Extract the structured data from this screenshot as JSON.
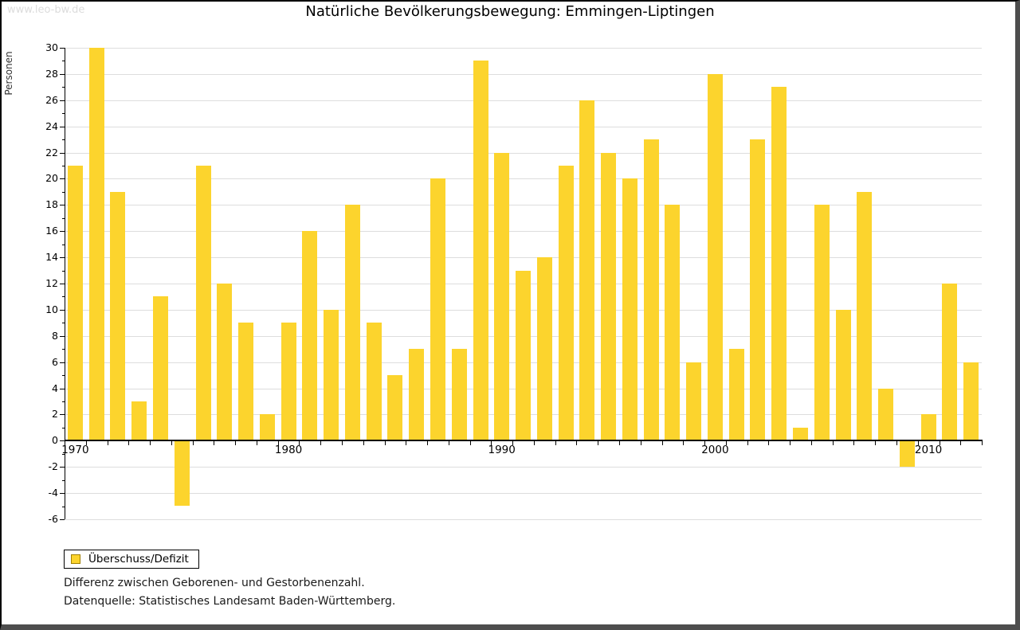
{
  "watermark": "www.leo-bw.de",
  "title": "Natürliche Bevölkerungsbewegung: Emmingen-Liptingen",
  "legend": {
    "label": "Überschuss/Defizit",
    "swatch_color": "#FCD42D",
    "swatch_border": "#A18000"
  },
  "notes": [
    "Differenz zwischen Geborenen- und Gestorbenenzahl.",
    "Datenquelle: Statistisches Landesamt Baden-Württemberg."
  ],
  "chart_data": {
    "type": "bar",
    "title": "Natürliche Bevölkerungsbewegung: Emmingen-Liptingen",
    "xlabel": "",
    "ylabel": "Personen",
    "ylim": [
      -6,
      30
    ],
    "y_tick_step": 2,
    "grid": true,
    "legend_position": "bottom-left",
    "series_name": "Überschuss/Defizit",
    "bar_color": "#FCD42D",
    "gridline_color": "#dddddd",
    "x": [
      1970,
      1971,
      1972,
      1973,
      1974,
      1975,
      1976,
      1977,
      1978,
      1979,
      1980,
      1981,
      1982,
      1983,
      1984,
      1985,
      1986,
      1987,
      1988,
      1989,
      1990,
      1991,
      1992,
      1993,
      1994,
      1995,
      1996,
      1997,
      1998,
      1999,
      2000,
      2001,
      2002,
      2003,
      2004,
      2005,
      2006,
      2007,
      2008,
      2009,
      2010,
      2011,
      2012
    ],
    "values": [
      21,
      30,
      19,
      3,
      11,
      -5,
      21,
      12,
      9,
      2,
      9,
      16,
      10,
      18,
      9,
      5,
      7,
      20,
      7,
      29,
      22,
      13,
      14,
      21,
      26,
      22,
      20,
      23,
      18,
      6,
      28,
      7,
      23,
      27,
      1,
      18,
      10,
      19,
      4,
      -2,
      2,
      12,
      6
    ],
    "x_tick_labels": [
      1970,
      1980,
      1990,
      2000,
      2010
    ]
  }
}
